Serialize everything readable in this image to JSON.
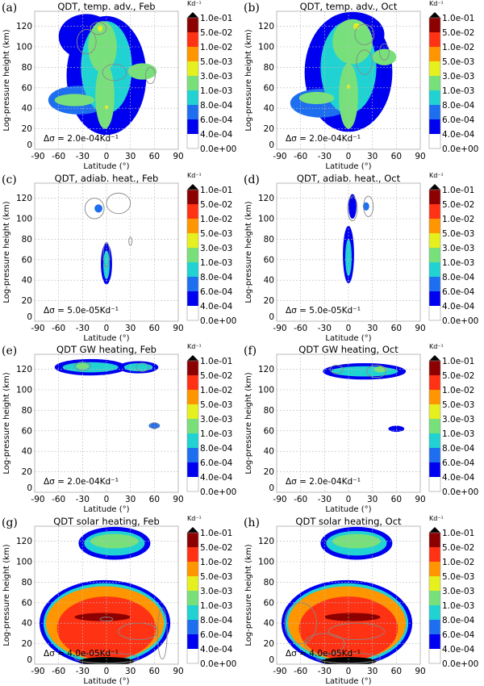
{
  "chart_data": {
    "type": "heatmap",
    "xlabel": "Latitude (°)",
    "ylabel": "Log-pressure height (km)",
    "xticks": [
      "-90",
      "-60",
      "-30",
      "0",
      "30",
      "60",
      "90"
    ],
    "yticks": [
      "0",
      "20",
      "40",
      "60",
      "80",
      "100",
      "120"
    ],
    "xlim": [
      -90,
      90
    ],
    "ylim": [
      0,
      134
    ],
    "colorbar": {
      "units": "Kd⁻¹",
      "labels": [
        "1.0e-01",
        "5.0e-02",
        "1.0e-02",
        "5.0e-03",
        "3.0e-03",
        "1.0e-03",
        "8.0e-04",
        "6.0e-04",
        "4.0e-04",
        "0.0e+00"
      ],
      "colors": [
        "#ffffff",
        "#0000f0",
        "#1e6ef0",
        "#20d2d2",
        "#78e07a",
        "#e6f01e",
        "#ff9600",
        "#ff3214",
        "#8c0000",
        "#000000"
      ]
    },
    "panels": [
      {
        "label": "(a)",
        "title": "QDT, temp. adv., Feb",
        "delta": "Δσ = 2.0e-04Kd⁻¹",
        "regions": [
          [
            0,
            72,
            50,
            58,
            1
          ],
          [
            -25,
            110,
            35,
            22,
            1
          ],
          [
            -35,
            48,
            38,
            14,
            2
          ],
          [
            0,
            80,
            32,
            45,
            3
          ],
          [
            -5,
            100,
            18,
            25,
            4
          ],
          [
            -2,
            52,
            12,
            32,
            4
          ],
          [
            -40,
            48,
            25,
            6,
            4
          ],
          [
            45,
            76,
            18,
            8,
            4
          ],
          [
            -8,
            118,
            3,
            3,
            5
          ],
          [
            0,
            41,
            2,
            2,
            5
          ]
        ],
        "contours": [
          [
            -25,
            105,
            12,
            12
          ],
          [
            10,
            75,
            15,
            8
          ],
          [
            55,
            72,
            6,
            8
          ],
          [
            -10,
            118,
            10,
            6
          ]
        ]
      },
      {
        "label": "(b)",
        "title": "QDT, temp. adv., Oct",
        "delta": "Δσ = 2.0e-04Kd⁻¹",
        "regions": [
          [
            0,
            75,
            55,
            58,
            1
          ],
          [
            5,
            112,
            40,
            22,
            1
          ],
          [
            -35,
            45,
            38,
            14,
            2
          ],
          [
            0,
            80,
            35,
            45,
            3
          ],
          [
            5,
            105,
            25,
            22,
            4
          ],
          [
            0,
            52,
            12,
            32,
            4
          ],
          [
            -40,
            50,
            22,
            6,
            4
          ],
          [
            45,
            90,
            15,
            8,
            4
          ],
          [
            10,
            120,
            4,
            3,
            5
          ],
          [
            0,
            61,
            2,
            2,
            5
          ]
        ],
        "contours": [
          [
            20,
            112,
            12,
            10
          ],
          [
            20,
            85,
            10,
            12
          ],
          [
            45,
            95,
            6,
            8
          ]
        ]
      },
      {
        "label": "(c)",
        "title": "QDT, adiab. heat., Feb",
        "delta": "Δσ = 5.0e-05Kd⁻¹",
        "regions": [
          [
            0,
            56,
            7,
            20,
            1
          ],
          [
            0,
            55,
            4,
            14,
            3
          ],
          [
            -10,
            110,
            5,
            4,
            2
          ]
        ],
        "contours": [
          [
            -15,
            110,
            12,
            10
          ],
          [
            15,
            115,
            15,
            10
          ],
          [
            0,
            65,
            4,
            12
          ],
          [
            30,
            78,
            2,
            4
          ]
        ]
      },
      {
        "label": "(d)",
        "title": "QDT, adiab. heat., Oct",
        "delta": "Δσ = 5.0e-05Kd⁻¹",
        "regions": [
          [
            0,
            65,
            7,
            28,
            1
          ],
          [
            0,
            62,
            4,
            18,
            3
          ],
          [
            5,
            112,
            5,
            12,
            1
          ],
          [
            22,
            112,
            4,
            4,
            2
          ]
        ],
        "contours": [
          [
            5,
            110,
            6,
            12
          ],
          [
            25,
            112,
            6,
            10
          ]
        ]
      },
      {
        "label": "(e)",
        "title": "QDT GW heating, Feb",
        "delta": "Δσ = 2.0e-04Kd⁻¹",
        "regions": [
          [
            -20,
            122,
            45,
            8,
            1
          ],
          [
            -20,
            122,
            35,
            5,
            3
          ],
          [
            40,
            122,
            25,
            6,
            1
          ],
          [
            40,
            122,
            18,
            4,
            3
          ],
          [
            60,
            65,
            7,
            3,
            2
          ],
          [
            -30,
            123,
            8,
            3,
            4
          ]
        ],
        "contours": [
          [
            -30,
            123,
            10,
            4
          ],
          [
            45,
            122,
            8,
            4
          ],
          [
            60,
            65,
            5,
            3
          ]
        ]
      },
      {
        "label": "(f)",
        "title": "QDT GW heating, Oct",
        "delta": "Δσ = 2.0e-04Kd⁻¹",
        "regions": [
          [
            20,
            118,
            52,
            8,
            1
          ],
          [
            20,
            118,
            42,
            5,
            3
          ],
          [
            60,
            62,
            10,
            3,
            1
          ],
          [
            40,
            120,
            8,
            3,
            4
          ]
        ],
        "contours": [
          [
            35,
            118,
            12,
            6
          ],
          [
            -15,
            120,
            8,
            4
          ]
        ]
      },
      {
        "label": "(g)",
        "title": "QDT solar heating, Feb",
        "delta": "Δσ = 4.0e-05Kd⁻¹",
        "regions": [
          [
            10,
            118,
            45,
            16,
            1
          ],
          [
            10,
            118,
            38,
            12,
            3
          ],
          [
            10,
            120,
            30,
            7,
            4
          ],
          [
            -2,
            40,
            82,
            42,
            1
          ],
          [
            -2,
            40,
            77,
            39,
            3
          ],
          [
            -2,
            40,
            74,
            36,
            6
          ],
          [
            0,
            35,
            62,
            31,
            7
          ],
          [
            -5,
            46,
            35,
            4,
            8
          ],
          [
            0,
            3,
            35,
            4,
            9
          ]
        ],
        "contours": [
          [
            0,
            44,
            8,
            2
          ],
          [
            40,
            32,
            25,
            8
          ],
          [
            70,
            30,
            6,
            25
          ],
          [
            0,
            6,
            40,
            5
          ]
        ]
      },
      {
        "label": "(h)",
        "title": "QDT solar heating, Oct",
        "delta": "Δσ = 4.0e-05Kd⁻¹",
        "regions": [
          [
            10,
            118,
            45,
            16,
            1
          ],
          [
            10,
            118,
            38,
            12,
            3
          ],
          [
            10,
            120,
            30,
            7,
            4
          ],
          [
            -2,
            40,
            82,
            42,
            1
          ],
          [
            -2,
            40,
            77,
            39,
            3
          ],
          [
            -2,
            40,
            74,
            36,
            6
          ],
          [
            0,
            35,
            62,
            31,
            7
          ],
          [
            5,
            46,
            35,
            4,
            8
          ],
          [
            0,
            3,
            35,
            4,
            9
          ]
        ],
        "contours": [
          [
            -60,
            40,
            20,
            20
          ],
          [
            10,
            32,
            35,
            8
          ],
          [
            -30,
            20,
            25,
            10
          ],
          [
            0,
            6,
            40,
            5
          ]
        ]
      }
    ]
  }
}
